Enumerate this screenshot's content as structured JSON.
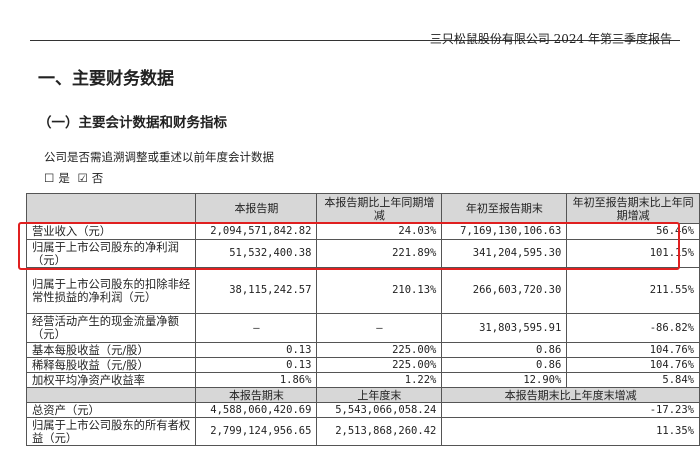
{
  "header": {
    "report_title": "三只松鼠股份有限公司 2024 年第三季度报告"
  },
  "section_title": "一、主要财务数据",
  "subsection_title": "（一）主要会计数据和财务指标",
  "note": "公司是否需追溯调整或重述以前年度会计数据",
  "options": {
    "yes_box": "☐",
    "yes_label": "是",
    "no_box": "☑",
    "no_label": "否"
  },
  "table1": {
    "headers": [
      "",
      "本报告期",
      "本报告期比上年同期增减",
      "年初至报告期末",
      "年初至报告期末比上年同期增减"
    ],
    "rows": [
      {
        "label": "营业收入（元）",
        "current": "2,094,571,842.82",
        "current_change": "24.03%",
        "ytd": "7,169,130,106.63",
        "ytd_change": "56.46%"
      },
      {
        "label": "归属于上市公司股东的净利润（元）",
        "current": "51,532,400.38",
        "current_change": "221.89%",
        "ytd": "341,204,595.30",
        "ytd_change": "101.15%"
      },
      {
        "label": "归属于上市公司股东的扣除非经常性损益的净利润（元）",
        "current": "38,115,242.57",
        "current_change": "210.13%",
        "ytd": "266,603,720.30",
        "ytd_change": "211.55%"
      },
      {
        "label": "经营活动产生的现金流量净额（元）",
        "current": "—",
        "current_change": "—",
        "ytd": "31,803,595.91",
        "ytd_change": "-86.82%"
      },
      {
        "label": "基本每股收益（元/股）",
        "current": "0.13",
        "current_change": "225.00%",
        "ytd": "0.86",
        "ytd_change": "104.76%"
      },
      {
        "label": "稀释每股收益（元/股）",
        "current": "0.13",
        "current_change": "225.00%",
        "ytd": "0.86",
        "ytd_change": "104.76%"
      },
      {
        "label": "加权平均净资产收益率",
        "current": "1.86%",
        "current_change": "1.22%",
        "ytd": "12.90%",
        "ytd_change": "5.84%"
      }
    ]
  },
  "table2": {
    "headers": [
      "",
      "本报告期末",
      "上年度末",
      "本报告期末比上年度末增减"
    ],
    "rows": [
      {
        "label": "总资产（元）",
        "current_end": "4,588,060,420.69",
        "prior_end": "5,543,066,058.24",
        "change": "-17.23%"
      },
      {
        "label": "归属于上市公司股东的所有者权益（元）",
        "current_end": "2,799,124,956.65",
        "prior_end": "2,513,868,260.42",
        "change": "11.35%"
      }
    ]
  }
}
